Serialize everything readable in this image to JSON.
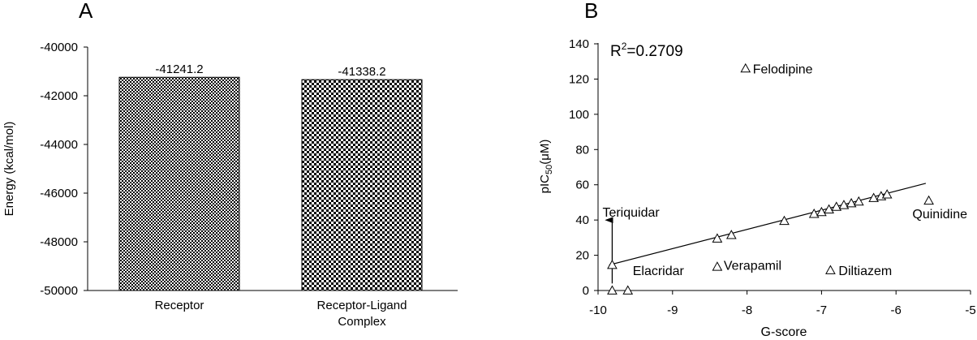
{
  "chart_data": [
    {
      "panel_label": "A",
      "type": "bar",
      "categories": [
        {
          "lines": [
            "Receptor"
          ]
        },
        {
          "lines": [
            "Receptor-Ligand",
            "Complex"
          ]
        }
      ],
      "values": [
        -41241.2,
        -41338.2
      ],
      "value_labels": [
        "-41241.2",
        "-41338.2"
      ],
      "ylabel": "Energy (kcal/mol)",
      "ylim": [
        -50000,
        -40000
      ],
      "yticks": [
        -40000,
        -42000,
        -44000,
        -46000,
        -48000,
        -50000
      ],
      "ytick_labels": [
        "-40000",
        "-42000",
        "-44000",
        "-46000",
        "-48000",
        "-50000"
      ],
      "fill_patterns": [
        "fine-checkerboard",
        "coarse-checkerboard"
      ],
      "grid": false
    },
    {
      "panel_label": "B",
      "type": "scatter",
      "xlabel": "G-score",
      "ylabel": {
        "base": "pIC",
        "sub": "50",
        "tail": "(μM)"
      },
      "xlim": [
        -10,
        -5
      ],
      "ylim": [
        0,
        140
      ],
      "xticks": [
        -10,
        -9,
        -8,
        -7,
        -6,
        -5
      ],
      "xtick_labels": [
        "-10",
        "-9",
        "-8",
        "-7",
        "-6",
        "-5"
      ],
      "yticks": [
        0,
        20,
        40,
        60,
        80,
        100,
        120,
        140
      ],
      "ytick_labels": [
        "0",
        "20",
        "40",
        "60",
        "80",
        "100",
        "120",
        "140"
      ],
      "r2_text": {
        "base": "R",
        "sup": "2",
        "tail": "=0.2709"
      },
      "marker": "open-triangle",
      "points": [
        {
          "x": -9.81,
          "y": 14.5
        },
        {
          "x": -9.81,
          "y": 0
        },
        {
          "x": -9.6,
          "y": 0
        },
        {
          "x": -8.4,
          "y": 29.5
        },
        {
          "x": -8.21,
          "y": 31.5
        },
        {
          "x": -8.4,
          "y": 13.5
        },
        {
          "x": -8.02,
          "y": 126
        },
        {
          "x": -7.5,
          "y": 39.5
        },
        {
          "x": -7.1,
          "y": 43.5
        },
        {
          "x": -7.0,
          "y": 44.5
        },
        {
          "x": -6.9,
          "y": 46
        },
        {
          "x": -6.8,
          "y": 47.5
        },
        {
          "x": -6.7,
          "y": 48.5
        },
        {
          "x": -6.6,
          "y": 49.5
        },
        {
          "x": -6.5,
          "y": 50.5
        },
        {
          "x": -6.3,
          "y": 52.5
        },
        {
          "x": -6.2,
          "y": 53.5
        },
        {
          "x": -6.12,
          "y": 54.5
        },
        {
          "x": -6.88,
          "y": 11.5
        },
        {
          "x": -5.56,
          "y": 51
        }
      ],
      "point_labels": [
        {
          "text": "Felodipine",
          "x": -8.02,
          "y": 126
        },
        {
          "text": "Teriquidar",
          "x": -9.81,
          "y": 42
        },
        {
          "text": "Quinidine",
          "x": -5.56,
          "y": 41
        },
        {
          "text": "Verapamil",
          "x": -8.4,
          "y": 13.5
        },
        {
          "text": "Elacridar",
          "x": -9.6,
          "y": 5
        },
        {
          "text": "Diltiazem",
          "x": -6.88,
          "y": 11.5
        }
      ],
      "fit_line": {
        "x": [
          -9.85,
          -5.6
        ],
        "y": [
          14.5,
          60.8
        ]
      },
      "arrow": {
        "x": -9.81,
        "y_from": 4,
        "y_to": 40
      },
      "grid": false
    }
  ]
}
